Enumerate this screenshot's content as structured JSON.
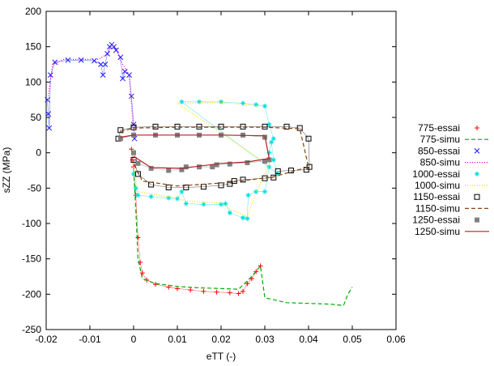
{
  "chart_data": {
    "type": "scatter",
    "title": "",
    "xlabel": "eTT (-)",
    "ylabel": "sZZ (MPa)",
    "xlim": [
      -0.02,
      0.06
    ],
    "ylim": [
      -250,
      200
    ],
    "x_ticks": [
      "-0.02",
      "-0.01",
      "0",
      "0.01",
      "0.02",
      "0.03",
      "0.04",
      "0.05",
      "0.06"
    ],
    "y_ticks": [
      "-250",
      "-200",
      "-150",
      "-100",
      "-50",
      "0",
      "50",
      "100",
      "150",
      "200"
    ],
    "grid": false,
    "legend_position": "right",
    "series": [
      {
        "name": "775-essai",
        "color": "#ff0000",
        "marker": "plus",
        "points": [
          [
            -0.0005,
            5
          ],
          [
            -0.0002,
            -10
          ],
          [
            0,
            -20
          ],
          [
            0.0005,
            -60
          ],
          [
            0.001,
            -120
          ],
          [
            0.0015,
            -155
          ],
          [
            0.002,
            -170
          ],
          [
            0.003,
            -180
          ],
          [
            0.005,
            -186
          ],
          [
            0.008,
            -190
          ],
          [
            0.01,
            -192
          ],
          [
            0.013,
            -194
          ],
          [
            0.016,
            -196
          ],
          [
            0.019,
            -197
          ],
          [
            0.022,
            -198
          ],
          [
            0.024,
            -199
          ],
          [
            0.025,
            -196
          ],
          [
            0.026,
            -185
          ],
          [
            0.027,
            -178
          ],
          [
            0.028,
            -168
          ],
          [
            0.029,
            -160
          ]
        ]
      },
      {
        "name": "775-simu",
        "color": "#00aa00",
        "marker": "dash",
        "points": [
          [
            0,
            -25
          ],
          [
            0.0005,
            -80
          ],
          [
            0.001,
            -150
          ],
          [
            0.002,
            -178
          ],
          [
            0.005,
            -185
          ],
          [
            0.01,
            -189
          ],
          [
            0.015,
            -191
          ],
          [
            0.02,
            -192
          ],
          [
            0.024,
            -193
          ],
          [
            0.027,
            -175
          ],
          [
            0.029,
            -160
          ],
          [
            0.03,
            -205
          ],
          [
            0.035,
            -212
          ],
          [
            0.04,
            -213
          ],
          [
            0.045,
            -214
          ],
          [
            0.048,
            -216
          ],
          [
            0.049,
            -200
          ],
          [
            0.05,
            -190
          ]
        ]
      },
      {
        "name": "850-essai",
        "color": "#1a1aff",
        "marker": "cross",
        "points": [
          [
            -0.0197,
            75
          ],
          [
            -0.0195,
            55
          ],
          [
            -0.0193,
            35
          ],
          [
            -0.019,
            110
          ],
          [
            -0.018,
            128
          ],
          [
            -0.015,
            131
          ],
          [
            -0.012,
            131
          ],
          [
            -0.009,
            130
          ],
          [
            -0.0075,
            125
          ],
          [
            -0.007,
            110
          ],
          [
            -0.0065,
            125
          ],
          [
            -0.006,
            140
          ],
          [
            -0.0055,
            150
          ],
          [
            -0.005,
            153
          ],
          [
            -0.0045,
            150
          ],
          [
            -0.004,
            145
          ],
          [
            -0.003,
            135
          ],
          [
            -0.0025,
            105
          ],
          [
            -0.002,
            115
          ],
          [
            -0.001,
            110
          ],
          [
            -0.0005,
            80
          ],
          [
            0,
            40
          ],
          [
            0.0002,
            20
          ]
        ]
      },
      {
        "name": "850-simu",
        "color": "#cc00cc",
        "marker": "dots",
        "points": [
          [
            -0.0195,
            80
          ],
          [
            -0.0185,
            125
          ],
          [
            -0.016,
            132
          ],
          [
            -0.012,
            132
          ],
          [
            -0.008,
            132
          ],
          [
            -0.006,
            140
          ],
          [
            -0.005,
            152
          ],
          [
            -0.004,
            148
          ],
          [
            -0.003,
            130
          ],
          [
            -0.001,
            110
          ],
          [
            0,
            30
          ]
        ]
      },
      {
        "name": "1000-essai",
        "color": "#00e0e0",
        "marker": "star",
        "points": [
          [
            0,
            -30
          ],
          [
            0.0005,
            -50
          ],
          [
            0.001,
            -60
          ],
          [
            0.004,
            -62
          ],
          [
            0.008,
            -64
          ],
          [
            0.01,
            -65
          ],
          [
            0.011,
            -55
          ],
          [
            0.012,
            -72
          ],
          [
            0.016,
            -73
          ],
          [
            0.02,
            -73
          ],
          [
            0.021,
            -72
          ],
          [
            0.022,
            -85
          ],
          [
            0.025,
            -92
          ],
          [
            0.026,
            -93
          ],
          [
            0.0262,
            -60
          ],
          [
            0.028,
            -55
          ],
          [
            0.03,
            -55
          ],
          [
            0.031,
            -20
          ],
          [
            0.031,
            0
          ],
          [
            0.0315,
            15
          ],
          [
            0.032,
            -10
          ],
          [
            0.033,
            -30
          ],
          [
            0.011,
            72
          ],
          [
            0.015,
            72
          ],
          [
            0.02,
            72
          ],
          [
            0.025,
            70
          ],
          [
            0.028,
            68
          ],
          [
            0.03,
            66
          ],
          [
            0.031,
            40
          ],
          [
            0.032,
            20
          ]
        ]
      },
      {
        "name": "1000-simu",
        "color": "#ffd700",
        "marker": "dots",
        "points": [
          [
            0,
            -20
          ],
          [
            0.001,
            -55
          ],
          [
            0.008,
            -62
          ],
          [
            0.012,
            -68
          ],
          [
            0.02,
            -71
          ],
          [
            0.022,
            -80
          ],
          [
            0.026,
            -90
          ],
          [
            0.028,
            -56
          ],
          [
            0.031,
            -18
          ],
          [
            0.01,
            70
          ],
          [
            0.02,
            71
          ],
          [
            0.03,
            66
          ]
        ]
      },
      {
        "name": "1150-essai",
        "color": "#000000",
        "marker": "square-open",
        "points": [
          [
            -0.0035,
            20
          ],
          [
            -0.003,
            32
          ],
          [
            0,
            36
          ],
          [
            0.005,
            37
          ],
          [
            0.01,
            37
          ],
          [
            0.015,
            37
          ],
          [
            0.02,
            37
          ],
          [
            0.025,
            37
          ],
          [
            0.03,
            37
          ],
          [
            0.035,
            37
          ],
          [
            0.038,
            35
          ],
          [
            0.04,
            20
          ],
          [
            0.0402,
            -20
          ],
          [
            0.0395,
            -24
          ],
          [
            0.036,
            -25
          ],
          [
            0.033,
            -26
          ],
          [
            0.032,
            -35
          ],
          [
            0.03,
            -36
          ],
          [
            0.025,
            -38
          ],
          [
            0.023,
            -40
          ],
          [
            0.022,
            -44
          ],
          [
            0.02,
            -46
          ],
          [
            0.016,
            -48
          ],
          [
            0.012,
            -49
          ],
          [
            0.008,
            -49
          ],
          [
            0.004,
            -45
          ],
          [
            0.001,
            -30
          ],
          [
            0,
            -10
          ]
        ]
      },
      {
        "name": "1150-simu",
        "color": "#8b4513",
        "marker": "dash",
        "points": [
          [
            -0.003,
            30
          ],
          [
            0,
            35
          ],
          [
            0.01,
            36
          ],
          [
            0.02,
            36
          ],
          [
            0.03,
            36
          ],
          [
            0.038,
            34
          ],
          [
            0.04,
            -20
          ],
          [
            0.032,
            -34
          ],
          [
            0.022,
            -42
          ],
          [
            0.01,
            -47
          ],
          [
            0.002,
            -40
          ],
          [
            0,
            -15
          ]
        ]
      },
      {
        "name": "1250-essai",
        "color": "#808080",
        "marker": "square-filled",
        "points": [
          [
            -0.003,
            20
          ],
          [
            0,
            25
          ],
          [
            0.005,
            25
          ],
          [
            0.01,
            25
          ],
          [
            0.015,
            25
          ],
          [
            0.02,
            25
          ],
          [
            0.025,
            25
          ],
          [
            0.03,
            22
          ],
          [
            0.031,
            -10
          ],
          [
            0.03,
            -12
          ],
          [
            0.026,
            -14
          ],
          [
            0.022,
            -16
          ],
          [
            0.019,
            -17
          ],
          [
            0.018,
            -20
          ],
          [
            0.015,
            -20
          ],
          [
            0.012,
            -20
          ],
          [
            0.011,
            -24
          ],
          [
            0.008,
            -25
          ],
          [
            0.004,
            -22
          ],
          [
            0.001,
            -15
          ],
          [
            0,
            0
          ]
        ]
      },
      {
        "name": "1250-simu",
        "color": "#b22222",
        "marker": "line",
        "points": [
          [
            -0.003,
            22
          ],
          [
            0,
            25
          ],
          [
            0.01,
            25
          ],
          [
            0.02,
            25
          ],
          [
            0.03,
            24
          ],
          [
            0.031,
            -8
          ],
          [
            0.026,
            -13
          ],
          [
            0.02,
            -15
          ],
          [
            0.011,
            -22
          ],
          [
            0.004,
            -21
          ],
          [
            0,
            -5
          ]
        ]
      }
    ]
  }
}
